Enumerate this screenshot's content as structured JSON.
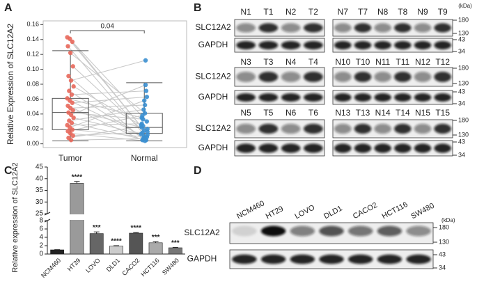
{
  "chart_data": [
    {
      "type": "boxplot",
      "label": "A",
      "ylabel": "Relative Expression of SLC12A2",
      "categories": [
        "Tumor",
        "Normal"
      ],
      "colors": [
        "#e8685b",
        "#3b8fd0"
      ],
      "values": [
        [
          0.143,
          0.141,
          0.137,
          0.131,
          0.122,
          0.104,
          0.091,
          0.085,
          0.077,
          0.071,
          0.066,
          0.061,
          0.058,
          0.055,
          0.051,
          0.048,
          0.045,
          0.042,
          0.039,
          0.035,
          0.031,
          0.028,
          0.025,
          0.022,
          0.019,
          0.017,
          0.014,
          0.011,
          0.008,
          0.005
        ],
        [
          0.022,
          0.018,
          0.03,
          0.015,
          0.041,
          0.012,
          0.006,
          0.112,
          0.025,
          0.008,
          0.071,
          0.035,
          0.01,
          0.063,
          0.005,
          0.052,
          0.02,
          0.033,
          0.079,
          0.013,
          0.046,
          0.005,
          0.027,
          0.058,
          0.009,
          0.038,
          0.004,
          0.016,
          0.024,
          0.007
        ]
      ],
      "boxes": [
        [
          0.004,
          0.019,
          0.042,
          0.061,
          0.125
        ],
        [
          0.004,
          0.014,
          0.022,
          0.041,
          0.082
        ]
      ],
      "annotation": "0.04",
      "ylim": [
        -0.005,
        0.165
      ],
      "yticks": [
        {
          "value": 0,
          "label": "0.00"
        },
        {
          "value": 0.02,
          "label": "0.02"
        },
        {
          "value": 0.04,
          "label": "0.04"
        },
        {
          "value": 0.06,
          "label": "0.06"
        },
        {
          "value": 0.08,
          "label": "0.08"
        },
        {
          "value": 0.1,
          "label": "0.10"
        },
        {
          "value": 0.12,
          "label": "0.12"
        },
        {
          "value": 0.14,
          "label": "0.14"
        },
        {
          "value": 0.16,
          "label": "0.16"
        }
      ]
    },
    {
      "type": "bar",
      "label": "C",
      "ylabel": "Relative expression of SLC12A2",
      "categories": [
        "NCM460",
        "HT29",
        "LOVO",
        "DLD1",
        "CACO2",
        "HCT116",
        "SW480"
      ],
      "values": [
        1.0,
        38.0,
        4.9,
        1.9,
        5.0,
        2.7,
        1.5
      ],
      "errors": [
        0.05,
        0.8,
        0.4,
        0.1,
        0.15,
        0.25,
        0.1
      ],
      "annotations": [
        null,
        "****",
        "***",
        "****",
        "****",
        "***",
        "***"
      ],
      "colors": [
        "#222222",
        "#9a9a9a",
        "#666666",
        "#cccccc",
        "#555555",
        "#aaaaaa",
        "#777777"
      ],
      "ylim": [
        0,
        45
      ],
      "axis_break": [
        8,
        25
      ],
      "yticks": [
        0,
        2,
        4,
        6,
        8,
        25,
        30,
        35,
        40,
        45
      ]
    }
  ],
  "blot_b": {
    "label": "B",
    "unit": "(kDa)",
    "rows": [
      {
        "blocks": [
          {
            "lanes": [
              "N1",
              "T1",
              "N2",
              "T2"
            ],
            "proteins": [
              "SLC12A2",
              "GAPDH"
            ]
          },
          {
            "lanes": [
              "N7",
              "T7",
              "N8",
              "T8",
              "N9",
              "T9"
            ],
            "markers": [
              180,
              130,
              43,
              34
            ]
          }
        ]
      },
      {
        "blocks": [
          {
            "lanes": [
              "N3",
              "T3",
              "N4",
              "T4"
            ],
            "proteins": [
              "SLC12A2",
              "GAPDH"
            ]
          },
          {
            "lanes": [
              "N10",
              "T10",
              "N11",
              "T11",
              "N12",
              "T12"
            ],
            "markers": [
              180,
              130,
              43,
              34
            ]
          }
        ]
      },
      {
        "blocks": [
          {
            "lanes": [
              "N5",
              "T5",
              "N6",
              "T6"
            ],
            "proteins": [
              "SLC12A2",
              "GAPDH"
            ]
          },
          {
            "lanes": [
              "N13",
              "T13",
              "N14",
              "T14",
              "N15",
              "T15"
            ],
            "markers": [
              180,
              130,
              43,
              34
            ]
          }
        ]
      }
    ]
  },
  "blot_d": {
    "label": "D",
    "unit": "(kDa)",
    "lanes": [
      "NCM460",
      "HT29",
      "LOVO",
      "DLD1",
      "CACO2",
      "HCT116",
      "SW480"
    ],
    "proteins": [
      "SLC12A2",
      "GAPDH"
    ],
    "markers": [
      180,
      130,
      43,
      34
    ]
  }
}
